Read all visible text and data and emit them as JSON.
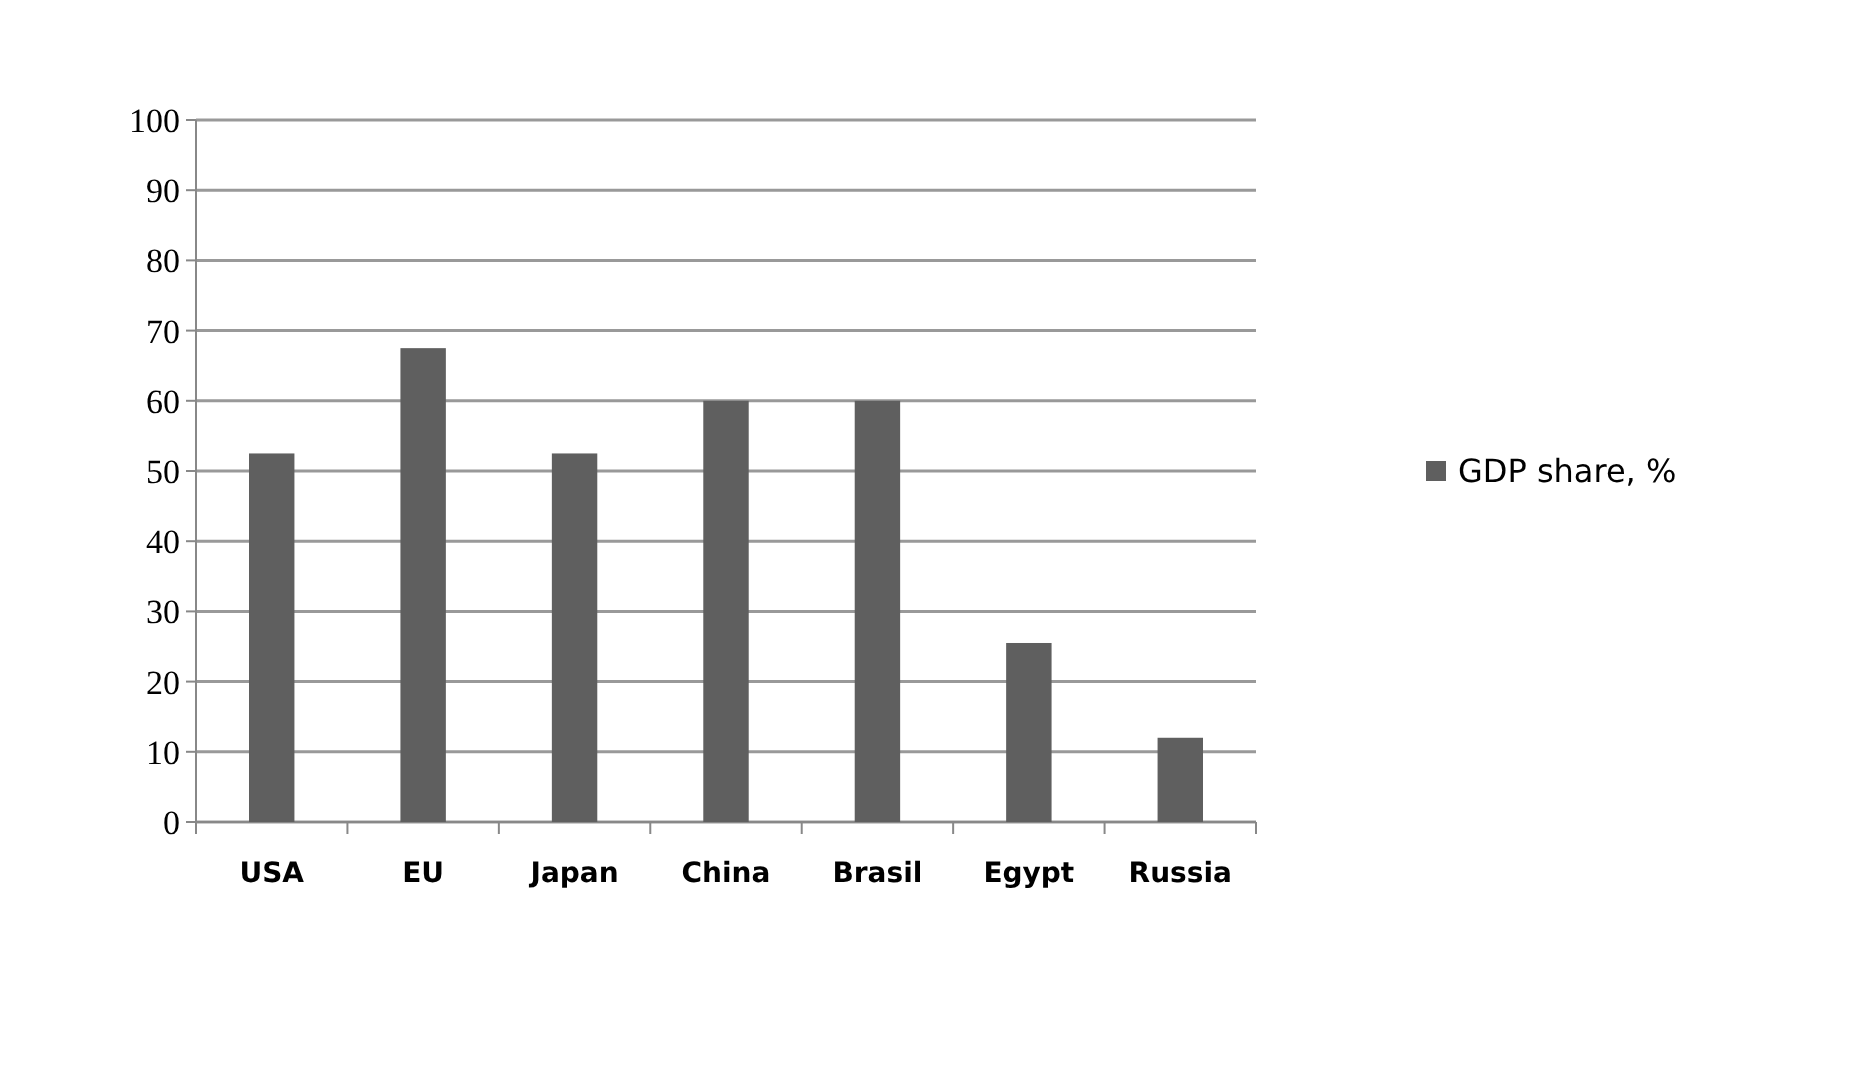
{
  "chart_data": {
    "type": "bar",
    "categories": [
      "USA",
      "EU",
      "Japan",
      "China",
      "Brasil",
      "Egypt",
      "Russia"
    ],
    "series": [
      {
        "name": "GDP share, %",
        "color": "#5f5f5f",
        "values": [
          52.5,
          67.5,
          52.5,
          60,
          60,
          25.5,
          12
        ]
      }
    ],
    "ylim": [
      0,
      100
    ],
    "yticks": [
      0,
      10,
      20,
      30,
      40,
      50,
      60,
      70,
      80,
      90,
      100
    ],
    "grid": "y",
    "legend": "right"
  }
}
